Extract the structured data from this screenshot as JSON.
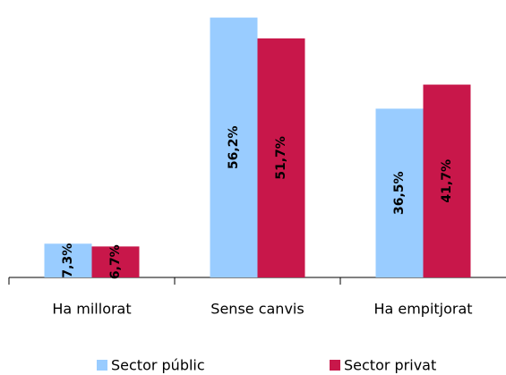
{
  "chart_data": {
    "type": "bar",
    "categories": [
      "Ha millorat",
      "Sense canvis",
      "Ha empitjorat"
    ],
    "series": [
      {
        "name": "Sector públic",
        "color": "#99ccff",
        "values": [
          7.3,
          56.2,
          36.5
        ],
        "value_labels": [
          "7,3%",
          "56,2%",
          "36,5%"
        ]
      },
      {
        "name": "Sector privat",
        "color": "#c8174a",
        "values": [
          6.7,
          51.7,
          41.7
        ],
        "value_labels": [
          "6,7%",
          "51,7%",
          "41,7%"
        ]
      }
    ],
    "ylim": [
      0,
      60
    ],
    "legend": "bottom"
  }
}
